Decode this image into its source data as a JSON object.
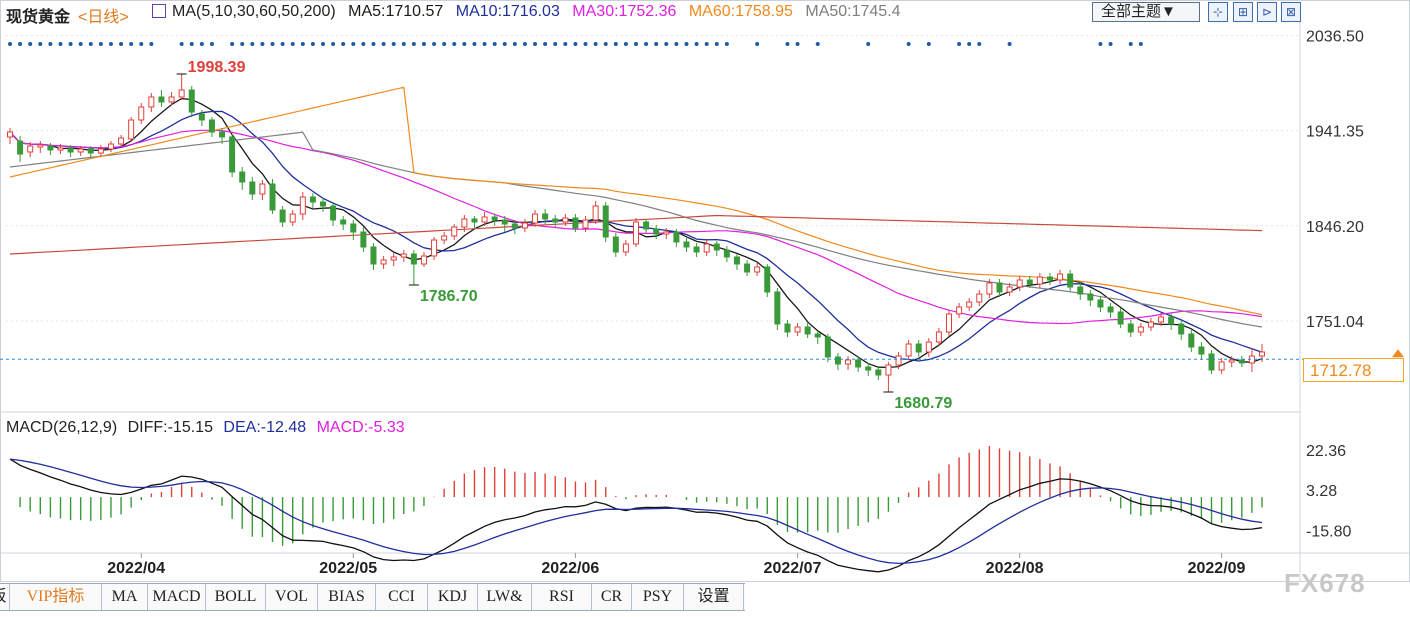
{
  "header": {
    "symbol": "现货黄金",
    "period": "<日线>",
    "ma_params": "MA(5,10,30,60,50,200)",
    "ma_items": [
      {
        "label": "MA5:1710.57",
        "color": "#1a1a1a"
      },
      {
        "label": "MA10:1716.03",
        "color": "#1f2f9c"
      },
      {
        "label": "MA30:1752.36",
        "color": "#e020e0"
      },
      {
        "label": "MA60:1758.95",
        "color": "#f08a1c"
      },
      {
        "label": "MA50:1745.4",
        "color": "#808080"
      }
    ],
    "theme_button": "全部主题▼",
    "tool_buttons": [
      "⊹",
      "⊞",
      "⊳",
      "⊠"
    ]
  },
  "price_axis": {
    "labels": [
      "2036.50",
      "1941.35",
      "1846.20",
      "1751.04"
    ],
    "current_price": "1712.78"
  },
  "annotations": {
    "high": "1998.39",
    "low1": "1786.70",
    "low2": "1680.79"
  },
  "macd_header": {
    "title": "MACD(26,12,9)",
    "diff": "DIFF:-15.15",
    "dea": "DEA:-12.48",
    "macd": "MACD:-5.33"
  },
  "macd_axis": {
    "labels": [
      "22.36",
      "3.28",
      "-15.80"
    ]
  },
  "x_axis": {
    "labels": [
      "2022/04",
      "2022/05",
      "2022/06",
      "2022/07",
      "2022/08",
      "2022/09"
    ]
  },
  "tabs": [
    "板",
    "VIP指标",
    "MA",
    "MACD",
    "BOLL",
    "VOL",
    "BIAS",
    "CCI",
    "KDJ",
    "LW&",
    "RSI",
    "CR",
    "PSY",
    "设置"
  ],
  "watermark": "FX678",
  "colors": {
    "up": "#e0403a",
    "down": "#3a9a3a",
    "grid": "#e4e4e4",
    "accent": "#f08a1c",
    "ma5": "#1a1a1a",
    "ma10": "#1f2f9c",
    "ma30": "#e020e0",
    "ma60": "#f08a1c",
    "ma50": "#808080",
    "ma200": "#c84a3c"
  },
  "chart_data": {
    "type": "candlestick",
    "price_range": [
      1660,
      2050
    ],
    "macd_range": [
      -26,
      28
    ],
    "candles": [
      [
        1935,
        1940,
        1928,
        1944
      ],
      [
        1931,
        1918,
        1910,
        1936
      ],
      [
        1920,
        1926,
        1915,
        1930
      ],
      [
        1925,
        1927,
        1919,
        1931
      ],
      [
        1926,
        1922,
        1917,
        1929
      ],
      [
        1922,
        1924,
        1918,
        1928
      ],
      [
        1924,
        1920,
        1915,
        1927
      ],
      [
        1920,
        1923,
        1916,
        1926
      ],
      [
        1923,
        1919,
        1914,
        1926
      ],
      [
        1919,
        1923,
        1915,
        1927
      ],
      [
        1923,
        1928,
        1920,
        1931
      ],
      [
        1928,
        1934,
        1925,
        1937
      ],
      [
        1933,
        1952,
        1930,
        1955
      ],
      [
        1952,
        1965,
        1948,
        1969
      ],
      [
        1965,
        1975,
        1960,
        1979
      ],
      [
        1975,
        1970,
        1965,
        1982
      ],
      [
        1970,
        1975,
        1967,
        1980
      ],
      [
        1975,
        1982,
        1972,
        1998
      ],
      [
        1982,
        1960,
        1955,
        1986
      ],
      [
        1958,
        1952,
        1946,
        1962
      ],
      [
        1952,
        1940,
        1935,
        1955
      ],
      [
        1940,
        1935,
        1928,
        1944
      ],
      [
        1935,
        1900,
        1895,
        1938
      ],
      [
        1900,
        1890,
        1882,
        1905
      ],
      [
        1890,
        1878,
        1872,
        1895
      ],
      [
        1878,
        1888,
        1872,
        1892
      ],
      [
        1888,
        1862,
        1858,
        1893
      ],
      [
        1862,
        1850,
        1845,
        1866
      ],
      [
        1850,
        1858,
        1846,
        1862
      ],
      [
        1858,
        1875,
        1852,
        1880
      ],
      [
        1875,
        1870,
        1864,
        1879
      ],
      [
        1870,
        1866,
        1860,
        1874
      ],
      [
        1866,
        1852,
        1846,
        1870
      ],
      [
        1852,
        1848,
        1842,
        1856
      ],
      [
        1848,
        1840,
        1832,
        1852
      ],
      [
        1840,
        1825,
        1820,
        1845
      ],
      [
        1825,
        1808,
        1802,
        1829
      ],
      [
        1808,
        1812,
        1803,
        1816
      ],
      [
        1812,
        1815,
        1806,
        1819
      ],
      [
        1815,
        1818,
        1810,
        1822
      ],
      [
        1818,
        1808,
        1787,
        1822
      ],
      [
        1808,
        1816,
        1805,
        1820
      ],
      [
        1816,
        1832,
        1812,
        1835
      ],
      [
        1832,
        1836,
        1828,
        1840
      ],
      [
        1836,
        1845,
        1832,
        1848
      ],
      [
        1845,
        1853,
        1840,
        1857
      ],
      [
        1853,
        1850,
        1843,
        1856
      ],
      [
        1850,
        1855,
        1846,
        1860
      ],
      [
        1855,
        1852,
        1846,
        1858
      ],
      [
        1852,
        1848,
        1840,
        1856
      ],
      [
        1848,
        1844,
        1838,
        1852
      ],
      [
        1844,
        1849,
        1840,
        1853
      ],
      [
        1849,
        1858,
        1845,
        1862
      ],
      [
        1858,
        1853,
        1848,
        1863
      ],
      [
        1853,
        1850,
        1845,
        1857
      ],
      [
        1850,
        1854,
        1846,
        1858
      ],
      [
        1854,
        1844,
        1840,
        1858
      ],
      [
        1844,
        1852,
        1840,
        1856
      ],
      [
        1852,
        1866,
        1848,
        1871
      ],
      [
        1866,
        1835,
        1830,
        1870
      ],
      [
        1835,
        1820,
        1815,
        1839
      ],
      [
        1820,
        1828,
        1816,
        1832
      ],
      [
        1828,
        1850,
        1825,
        1854
      ],
      [
        1850,
        1843,
        1838,
        1853
      ],
      [
        1843,
        1838,
        1833,
        1847
      ],
      [
        1838,
        1840,
        1833,
        1844
      ],
      [
        1840,
        1830,
        1825,
        1843
      ],
      [
        1830,
        1825,
        1820,
        1834
      ],
      [
        1825,
        1820,
        1815,
        1829
      ],
      [
        1820,
        1828,
        1816,
        1832
      ],
      [
        1828,
        1822,
        1816,
        1831
      ],
      [
        1822,
        1815,
        1810,
        1826
      ],
      [
        1815,
        1808,
        1802,
        1818
      ],
      [
        1808,
        1800,
        1796,
        1812
      ],
      [
        1800,
        1805,
        1796,
        1809
      ],
      [
        1805,
        1780,
        1775,
        1808
      ],
      [
        1780,
        1748,
        1742,
        1784
      ],
      [
        1748,
        1740,
        1735,
        1752
      ],
      [
        1740,
        1745,
        1736,
        1749
      ],
      [
        1745,
        1738,
        1734,
        1750
      ],
      [
        1738,
        1735,
        1728,
        1741
      ],
      [
        1735,
        1715,
        1710,
        1738
      ],
      [
        1715,
        1708,
        1702,
        1719
      ],
      [
        1708,
        1712,
        1702,
        1716
      ],
      [
        1712,
        1705,
        1700,
        1716
      ],
      [
        1705,
        1702,
        1696,
        1709
      ],
      [
        1702,
        1697,
        1692,
        1706
      ],
      [
        1697,
        1707,
        1680,
        1710
      ],
      [
        1707,
        1716,
        1703,
        1720
      ],
      [
        1716,
        1728,
        1712,
        1732
      ],
      [
        1728,
        1720,
        1715,
        1732
      ],
      [
        1720,
        1730,
        1715,
        1734
      ],
      [
        1730,
        1740,
        1726,
        1744
      ],
      [
        1740,
        1758,
        1736,
        1762
      ],
      [
        1758,
        1765,
        1754,
        1769
      ],
      [
        1765,
        1770,
        1761,
        1774
      ],
      [
        1770,
        1778,
        1766,
        1782
      ],
      [
        1778,
        1789,
        1774,
        1793
      ],
      [
        1789,
        1780,
        1775,
        1793
      ],
      [
        1780,
        1785,
        1776,
        1789
      ],
      [
        1785,
        1792,
        1781,
        1796
      ],
      [
        1792,
        1788,
        1784,
        1796
      ],
      [
        1788,
        1795,
        1784,
        1799
      ],
      [
        1795,
        1792,
        1787,
        1799
      ],
      [
        1792,
        1798,
        1788,
        1802
      ],
      [
        1798,
        1785,
        1780,
        1802
      ],
      [
        1785,
        1778,
        1772,
        1790
      ],
      [
        1778,
        1772,
        1766,
        1782
      ],
      [
        1772,
        1765,
        1760,
        1776
      ],
      [
        1765,
        1760,
        1754,
        1769
      ],
      [
        1760,
        1748,
        1744,
        1764
      ],
      [
        1748,
        1740,
        1735,
        1752
      ],
      [
        1740,
        1745,
        1736,
        1749
      ],
      [
        1745,
        1750,
        1741,
        1754
      ],
      [
        1750,
        1755,
        1746,
        1759
      ],
      [
        1755,
        1748,
        1742,
        1759
      ],
      [
        1748,
        1738,
        1732,
        1752
      ],
      [
        1738,
        1725,
        1720,
        1742
      ],
      [
        1725,
        1718,
        1712,
        1730
      ],
      [
        1718,
        1702,
        1698,
        1722
      ],
      [
        1702,
        1710,
        1698,
        1714
      ],
      [
        1710,
        1712,
        1705,
        1716
      ],
      [
        1712,
        1709,
        1705,
        1716
      ],
      [
        1709,
        1716,
        1700,
        1724
      ],
      [
        1716,
        1720,
        1710,
        1728
      ]
    ],
    "ma_series": [
      "ma5",
      "ma10",
      "ma30",
      "ma50",
      "ma60",
      "ma200"
    ],
    "dots": [
      0,
      1,
      2,
      3,
      4,
      5,
      6,
      7,
      8,
      9,
      10,
      11,
      12,
      13,
      14,
      17,
      18,
      19,
      20,
      22,
      23,
      24,
      25,
      26,
      27,
      28,
      29,
      30,
      31,
      32,
      33,
      34,
      35,
      36,
      37,
      38,
      39,
      40,
      41,
      42,
      43,
      44,
      45,
      46,
      47,
      48,
      49,
      50,
      51,
      52,
      53,
      54,
      55,
      56,
      57,
      58,
      59,
      60,
      61,
      62,
      63,
      64,
      65,
      66,
      67,
      68,
      69,
      70,
      71,
      74,
      77,
      78,
      80,
      85,
      89,
      91,
      94,
      95,
      96,
      99,
      108,
      109,
      111,
      112
    ]
  }
}
